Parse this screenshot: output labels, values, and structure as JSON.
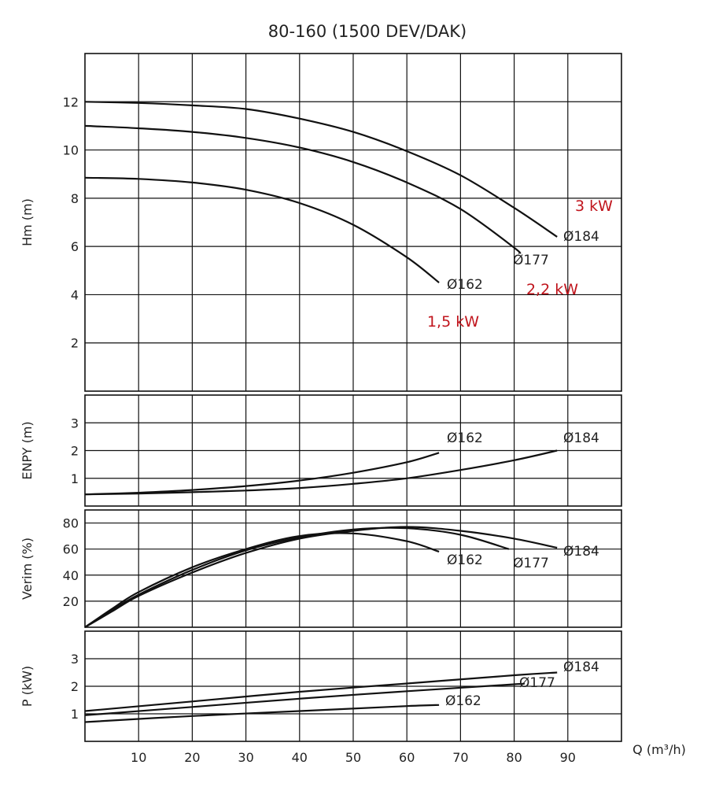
{
  "chart_data": {
    "type": "line",
    "title": "80-160 (1500 DEV/DAK)",
    "xlabel": "Q (m³/h)",
    "x_ticks": [
      10,
      20,
      30,
      40,
      50,
      60,
      70,
      80,
      90
    ],
    "xlim": [
      0,
      100
    ],
    "power_labels": [
      "3 kW",
      "2,2 kW",
      "1,5 kW"
    ],
    "panels": [
      {
        "id": "hm",
        "ylabel": "Hm (m)",
        "ylim": [
          0,
          14
        ],
        "y_ticks": [
          2,
          4,
          6,
          8,
          10,
          12
        ],
        "series": [
          {
            "name": "Ø184",
            "x": [
              0,
              10,
              20,
              30,
              40,
              50,
              60,
              70,
              80,
              88
            ],
            "y": [
              12.0,
              11.95,
              11.85,
              11.7,
              11.3,
              10.75,
              9.95,
              8.95,
              7.6,
              6.4
            ]
          },
          {
            "name": "Ø177",
            "x": [
              0,
              10,
              20,
              30,
              40,
              50,
              60,
              70,
              80,
              81
            ],
            "y": [
              11.0,
              10.9,
              10.75,
              10.5,
              10.1,
              9.5,
              8.65,
              7.55,
              5.95,
              5.7
            ]
          },
          {
            "name": "Ø162",
            "x": [
              0,
              10,
              20,
              30,
              40,
              50,
              60,
              66
            ],
            "y": [
              8.85,
              8.8,
              8.65,
              8.35,
              7.8,
              6.9,
              5.55,
              4.5
            ]
          }
        ]
      },
      {
        "id": "enpy",
        "ylabel": "ENPY (m)",
        "ylim": [
          0,
          4
        ],
        "y_ticks": [
          1,
          2,
          3
        ],
        "series": [
          {
            "name": "Ø162",
            "x": [
              0,
              10,
              20,
              30,
              40,
              50,
              60,
              66
            ],
            "y": [
              0.42,
              0.48,
              0.58,
              0.72,
              0.92,
              1.2,
              1.58,
              1.92
            ]
          },
          {
            "name": "Ø184",
            "x": [
              0,
              10,
              20,
              30,
              40,
              50,
              60,
              70,
              80,
              88
            ],
            "y": [
              0.42,
              0.45,
              0.5,
              0.56,
              0.65,
              0.8,
              1.0,
              1.3,
              1.65,
              2.0
            ]
          }
        ]
      },
      {
        "id": "verim",
        "ylabel": "Verim (%)",
        "ylim": [
          0,
          90
        ],
        "y_ticks": [
          20,
          40,
          60,
          80
        ],
        "series": [
          {
            "name": "Ø162",
            "x": [
              0,
              5,
              10,
              20,
              30,
              40,
              50,
              60,
              66
            ],
            "y": [
              0,
              14,
              27,
              46,
              60,
              70,
              72,
              66,
              58
            ]
          },
          {
            "name": "Ø177",
            "x": [
              0,
              5,
              10,
              20,
              30,
              40,
              50,
              60,
              70,
              79
            ],
            "y": [
              0,
              13,
              25,
              44,
              59,
              69,
              75,
              76,
              71,
              60
            ]
          },
          {
            "name": "Ø184",
            "x": [
              0,
              5,
              10,
              20,
              30,
              40,
              50,
              60,
              70,
              80,
              88
            ],
            "y": [
              0,
              12,
              24,
              42,
              57,
              68,
              74,
              77,
              74,
              68,
              61
            ]
          }
        ]
      },
      {
        "id": "p",
        "ylabel": "P (kW)",
        "ylim": [
          0,
          4
        ],
        "y_ticks": [
          1,
          2,
          3
        ],
        "series": [
          {
            "name": "Ø184",
            "x": [
              0,
              20,
              40,
              60,
              80,
              88
            ],
            "y": [
              1.1,
              1.45,
              1.8,
              2.1,
              2.4,
              2.5
            ]
          },
          {
            "name": "Ø177",
            "x": [
              0,
              20,
              40,
              60,
              80,
              81
            ],
            "y": [
              0.95,
              1.25,
              1.55,
              1.82,
              2.07,
              2.08
            ]
          },
          {
            "name": "Ø162",
            "x": [
              0,
              20,
              40,
              60,
              66
            ],
            "y": [
              0.7,
              0.92,
              1.1,
              1.28,
              1.32
            ]
          }
        ]
      }
    ]
  }
}
